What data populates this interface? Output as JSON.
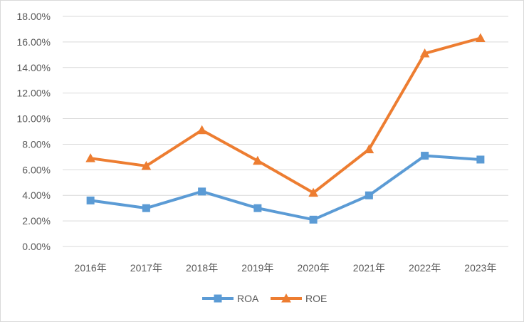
{
  "chart_data": {
    "type": "line",
    "title": "",
    "xlabel": "",
    "ylabel": "",
    "categories": [
      "2016年",
      "2017年",
      "2018年",
      "2019年",
      "2020年",
      "2021年",
      "2022年",
      "2023年"
    ],
    "ylim": [
      0,
      18
    ],
    "yticks": [
      0,
      2,
      4,
      6,
      8,
      10,
      12,
      14,
      16,
      18
    ],
    "ytick_labels": [
      "0.00%",
      "2.00%",
      "4.00%",
      "6.00%",
      "8.00%",
      "10.00%",
      "12.00%",
      "14.00%",
      "16.00%",
      "18.00%"
    ],
    "y_unit": "%",
    "grid": "horizontal",
    "legend_position": "bottom",
    "series": [
      {
        "name": "ROA",
        "marker": "square",
        "color": "#5B9BD5",
        "values": [
          3.6,
          3.0,
          4.3,
          3.0,
          2.1,
          4.0,
          7.1,
          6.8
        ]
      },
      {
        "name": "ROE",
        "marker": "triangle",
        "color": "#ED7D31",
        "values": [
          6.9,
          6.3,
          9.1,
          6.7,
          4.2,
          7.6,
          15.1,
          16.3
        ]
      }
    ]
  }
}
